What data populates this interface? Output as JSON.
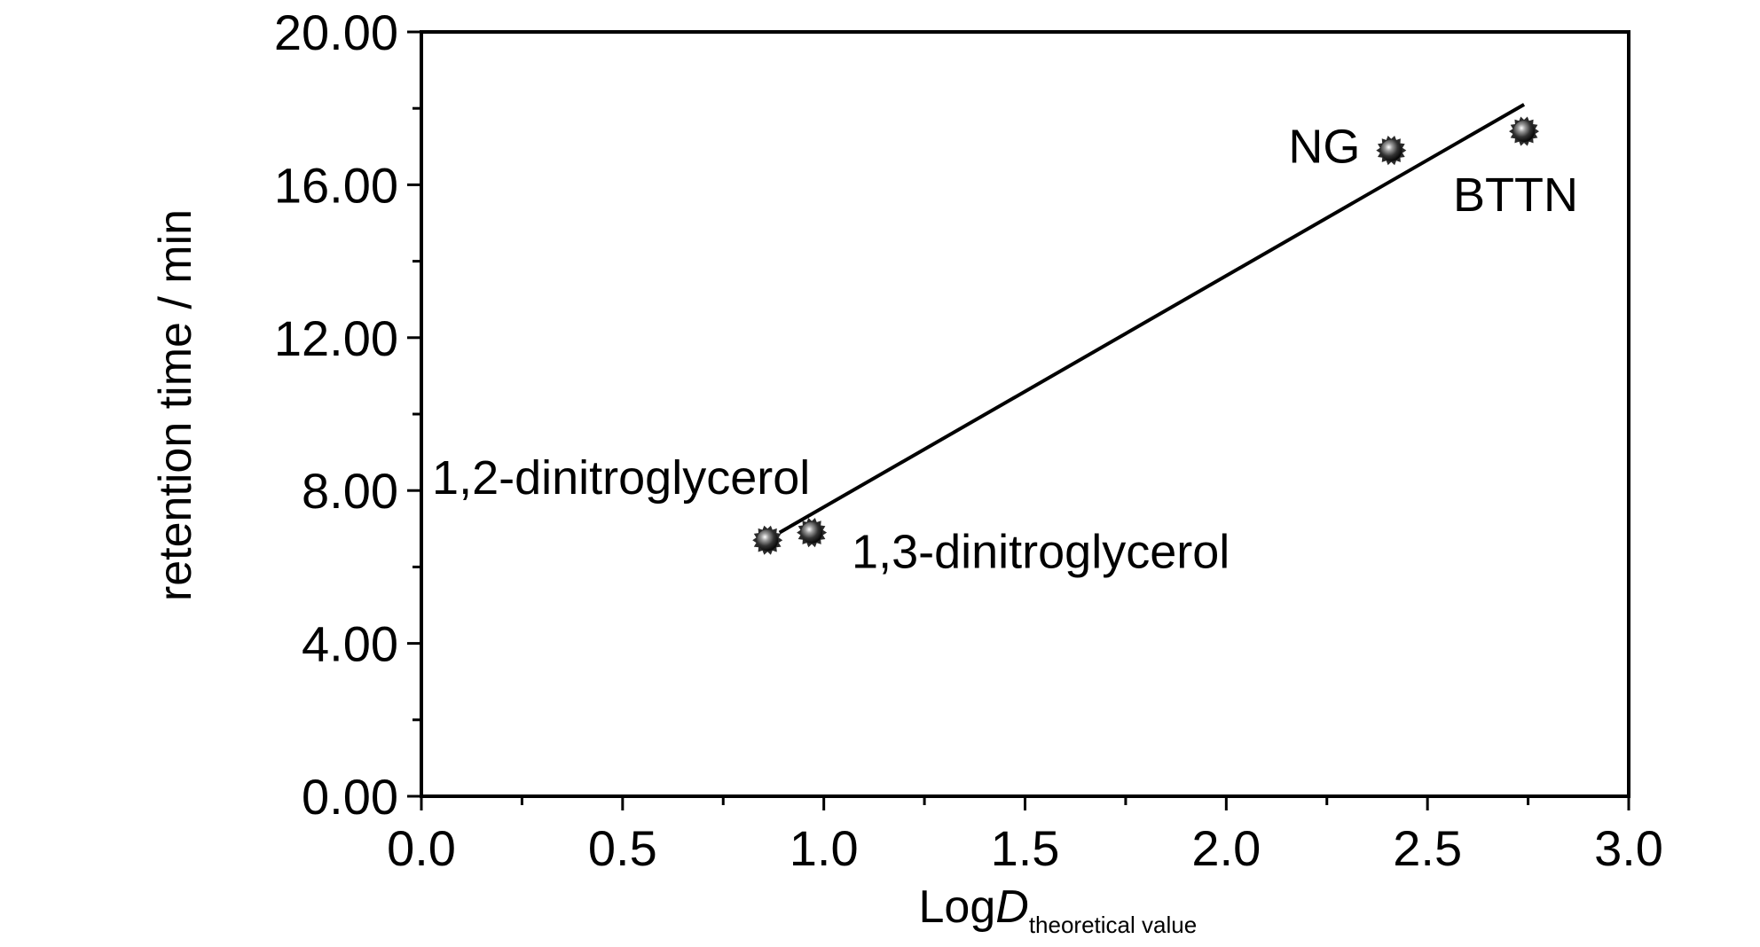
{
  "chart_data": {
    "type": "scatter",
    "title": "",
    "xlabel": "LogD",
    "xlabel_subscript": "theoretical value",
    "ylabel": "retention time / min",
    "xlim": [
      0.0,
      3.0
    ],
    "ylim": [
      0.0,
      20.0
    ],
    "x_ticks": [
      0.0,
      0.5,
      1.0,
      1.5,
      2.0,
      2.5,
      3.0
    ],
    "x_tick_labels": [
      "0.0",
      "0.5",
      "1.0",
      "1.5",
      "2.0",
      "2.5",
      "3.0"
    ],
    "y_ticks": [
      0,
      4,
      8,
      12,
      16,
      20
    ],
    "y_tick_labels": [
      "0.00",
      "4.00",
      "8.00",
      "12.00",
      "16.00",
      "20.00"
    ],
    "grid": false,
    "points": [
      {
        "label": "1,2-dinitroglycerol",
        "x": 0.86,
        "y": 6.7
      },
      {
        "label": "1,3-dinitroglycerol",
        "x": 0.97,
        "y": 6.9
      },
      {
        "label": "NG",
        "x": 2.41,
        "y": 16.9
      },
      {
        "label": "BTTN",
        "x": 2.74,
        "y": 17.4
      }
    ],
    "fit_line": {
      "x": [
        0.89,
        2.74
      ],
      "y": [
        6.9,
        18.1
      ]
    },
    "marker_color": "#2a2a2a",
    "line_color": "#000000"
  }
}
